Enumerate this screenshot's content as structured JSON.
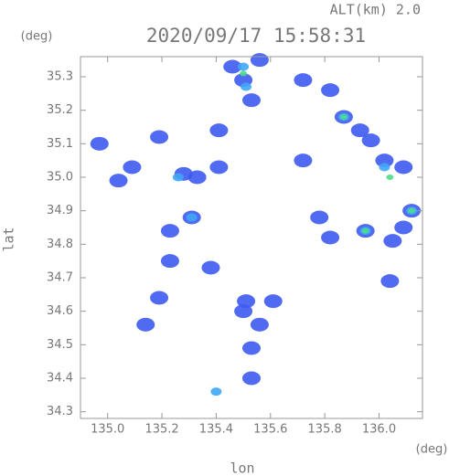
{
  "chart_data": {
    "type": "scatter",
    "title": "2020/09/17 15:58:31",
    "subtitle": "ALT(km) 2.0",
    "y_unit": "(deg)",
    "x_unit": "(deg)",
    "xlabel": "lon",
    "ylabel": "lat",
    "xlim": [
      134.9,
      136.16
    ],
    "ylim": [
      34.28,
      35.36
    ],
    "xticks": [
      {
        "value": 135,
        "label": "135.0"
      },
      135.2,
      135.4,
      135.6,
      135.8,
      {
        "value": 136,
        "label": "136.0"
      }
    ],
    "yticks": [
      34.3,
      34.4,
      34.5,
      34.6,
      34.7,
      34.8,
      34.9,
      {
        "value": 35,
        "label": "35.0"
      },
      35.1,
      35.2,
      35.3
    ],
    "series": [
      {
        "color": "#3d5af1",
        "x": [
          135.46,
          135.5,
          135.56,
          135.53,
          135.72,
          135.82,
          135.87,
          135.93,
          135.97,
          136.02,
          136.09,
          136.12,
          136.09,
          135.95,
          135.82,
          136.05,
          136.04,
          134.97,
          135.09,
          135.04,
          135.28,
          135.33,
          135.41,
          135.31,
          135.23,
          135.23,
          135.38,
          135.19,
          135.14,
          135.51,
          135.56,
          135.53,
          135.61,
          135.72,
          135.78,
          135.19,
          135.41,
          135.5,
          135.53
        ],
        "y": [
          35.33,
          35.29,
          35.35,
          35.23,
          35.29,
          35.26,
          35.18,
          35.14,
          35.11,
          35.05,
          35.03,
          34.9,
          34.85,
          34.84,
          34.82,
          34.81,
          34.69,
          35.1,
          35.03,
          34.99,
          35.01,
          35.0,
          35.03,
          34.88,
          34.84,
          34.75,
          34.73,
          34.64,
          34.56,
          34.63,
          34.56,
          34.49,
          34.63,
          35.05,
          34.88,
          35.12,
          35.14,
          34.6,
          34.4
        ]
      },
      {
        "color": "#3fa8f5",
        "x": [
          135.5,
          135.51,
          135.87,
          136.02,
          136.12,
          135.95,
          135.31,
          135.26,
          135.4
        ],
        "y": [
          35.33,
          35.27,
          35.18,
          35.03,
          34.9,
          34.84,
          34.88,
          35.0,
          34.36
        ]
      },
      {
        "color": "#4fdc8a",
        "x": [
          135.87,
          136.12,
          135.95,
          135.5,
          136.04
        ],
        "y": [
          35.18,
          34.9,
          34.84,
          35.31,
          35.0
        ]
      }
    ]
  }
}
